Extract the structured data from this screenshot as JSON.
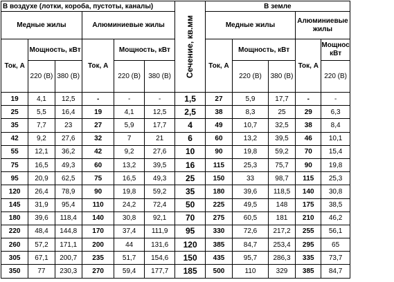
{
  "headers": {
    "air_title": "В воздухе (лотки, короба, пустоты, каналы)",
    "ground_title": "В земле",
    "section_label": "Сечение, кв.мм",
    "copper_air": "Медные жилы",
    "aluminum_air": "Алюминиевые жилы",
    "copper_ground": "Медные жилы",
    "aluminum_ground": "Алюминиевые жилы",
    "current": "Ток, А",
    "power": "Мощность, кВт",
    "v220": "220 (В)",
    "v380": "380 (В)"
  },
  "rows": [
    {
      "cu_air_i": "19",
      "cu_air_p220": "4,1",
      "cu_air_p380": "12,5",
      "al_air_i": "-",
      "al_air_p220": "-",
      "al_air_p380": "-",
      "section": "1,5",
      "cu_gr_i": "27",
      "cu_gr_p220": "5,9",
      "cu_gr_p380": "17,7",
      "al_gr_i": "-",
      "al_gr_p220": "-"
    },
    {
      "cu_air_i": "25",
      "cu_air_p220": "5,5",
      "cu_air_p380": "16,4",
      "al_air_i": "19",
      "al_air_p220": "4,1",
      "al_air_p380": "12,5",
      "section": "2,5",
      "cu_gr_i": "38",
      "cu_gr_p220": "8,3",
      "cu_gr_p380": "25",
      "al_gr_i": "29",
      "al_gr_p220": "6,3"
    },
    {
      "cu_air_i": "35",
      "cu_air_p220": "7,7",
      "cu_air_p380": "23",
      "al_air_i": "27",
      "al_air_p220": "5,9",
      "al_air_p380": "17,7",
      "section": "4",
      "cu_gr_i": "49",
      "cu_gr_p220": "10,7",
      "cu_gr_p380": "32,5",
      "al_gr_i": "38",
      "al_gr_p220": "8,4"
    },
    {
      "cu_air_i": "42",
      "cu_air_p220": "9,2",
      "cu_air_p380": "27,6",
      "al_air_i": "32",
      "al_air_p220": "7",
      "al_air_p380": "21",
      "section": "6",
      "cu_gr_i": "60",
      "cu_gr_p220": "13,2",
      "cu_gr_p380": "39,5",
      "al_gr_i": "46",
      "al_gr_p220": "10,1"
    },
    {
      "cu_air_i": "55",
      "cu_air_p220": "12,1",
      "cu_air_p380": "36,2",
      "al_air_i": "42",
      "al_air_p220": "9,2",
      "al_air_p380": "27,6",
      "section": "10",
      "cu_gr_i": "90",
      "cu_gr_p220": "19,8",
      "cu_gr_p380": "59,2",
      "al_gr_i": "70",
      "al_gr_p220": "15,4"
    },
    {
      "cu_air_i": "75",
      "cu_air_p220": "16,5",
      "cu_air_p380": "49,3",
      "al_air_i": "60",
      "al_air_p220": "13,2",
      "al_air_p380": "39,5",
      "section": "16",
      "cu_gr_i": "115",
      "cu_gr_p220": "25,3",
      "cu_gr_p380": "75,7",
      "al_gr_i": "90",
      "al_gr_p220": "19,8"
    },
    {
      "cu_air_i": "95",
      "cu_air_p220": "20,9",
      "cu_air_p380": "62,5",
      "al_air_i": "75",
      "al_air_p220": "16,5",
      "al_air_p380": "49,3",
      "section": "25",
      "cu_gr_i": "150",
      "cu_gr_p220": "33",
      "cu_gr_p380": "98,7",
      "al_gr_i": "115",
      "al_gr_p220": "25,3"
    },
    {
      "cu_air_i": "120",
      "cu_air_p220": "26,4",
      "cu_air_p380": "78,9",
      "al_air_i": "90",
      "al_air_p220": "19,8",
      "al_air_p380": "59,2",
      "section": "35",
      "cu_gr_i": "180",
      "cu_gr_p220": "39,6",
      "cu_gr_p380": "118,5",
      "al_gr_i": "140",
      "al_gr_p220": "30,8"
    },
    {
      "cu_air_i": "145",
      "cu_air_p220": "31,9",
      "cu_air_p380": "95,4",
      "al_air_i": "110",
      "al_air_p220": "24,2",
      "al_air_p380": "72,4",
      "section": "50",
      "cu_gr_i": "225",
      "cu_gr_p220": "49,5",
      "cu_gr_p380": "148",
      "al_gr_i": "175",
      "al_gr_p220": "38,5"
    },
    {
      "cu_air_i": "180",
      "cu_air_p220": "39,6",
      "cu_air_p380": "118,4",
      "al_air_i": "140",
      "al_air_p220": "30,8",
      "al_air_p380": "92,1",
      "section": "70",
      "cu_gr_i": "275",
      "cu_gr_p220": "60,5",
      "cu_gr_p380": "181",
      "al_gr_i": "210",
      "al_gr_p220": "46,2"
    },
    {
      "cu_air_i": "220",
      "cu_air_p220": "48,4",
      "cu_air_p380": "144,8",
      "al_air_i": "170",
      "al_air_p220": "37,4",
      "al_air_p380": "111,9",
      "section": "95",
      "cu_gr_i": "330",
      "cu_gr_p220": "72,6",
      "cu_gr_p380": "217,2",
      "al_gr_i": "255",
      "al_gr_p220": "56,1"
    },
    {
      "cu_air_i": "260",
      "cu_air_p220": "57,2",
      "cu_air_p380": "171,1",
      "al_air_i": "200",
      "al_air_p220": "44",
      "al_air_p380": "131,6",
      "section": "120",
      "cu_gr_i": "385",
      "cu_gr_p220": "84,7",
      "cu_gr_p380": "253,4",
      "al_gr_i": "295",
      "al_gr_p220": "65"
    },
    {
      "cu_air_i": "305",
      "cu_air_p220": "67,1",
      "cu_air_p380": "200,7",
      "al_air_i": "235",
      "al_air_p220": "51,7",
      "al_air_p380": "154,6",
      "section": "150",
      "cu_gr_i": "435",
      "cu_gr_p220": "95,7",
      "cu_gr_p380": "286,3",
      "al_gr_i": "335",
      "al_gr_p220": "73,7"
    },
    {
      "cu_air_i": "350",
      "cu_air_p220": "77",
      "cu_air_p380": "230,3",
      "al_air_i": "270",
      "al_air_p220": "59,4",
      "al_air_p380": "177,7",
      "section": "185",
      "cu_gr_i": "500",
      "cu_gr_p220": "110",
      "cu_gr_p380": "329",
      "al_gr_i": "385",
      "al_gr_p220": "84,7"
    }
  ]
}
